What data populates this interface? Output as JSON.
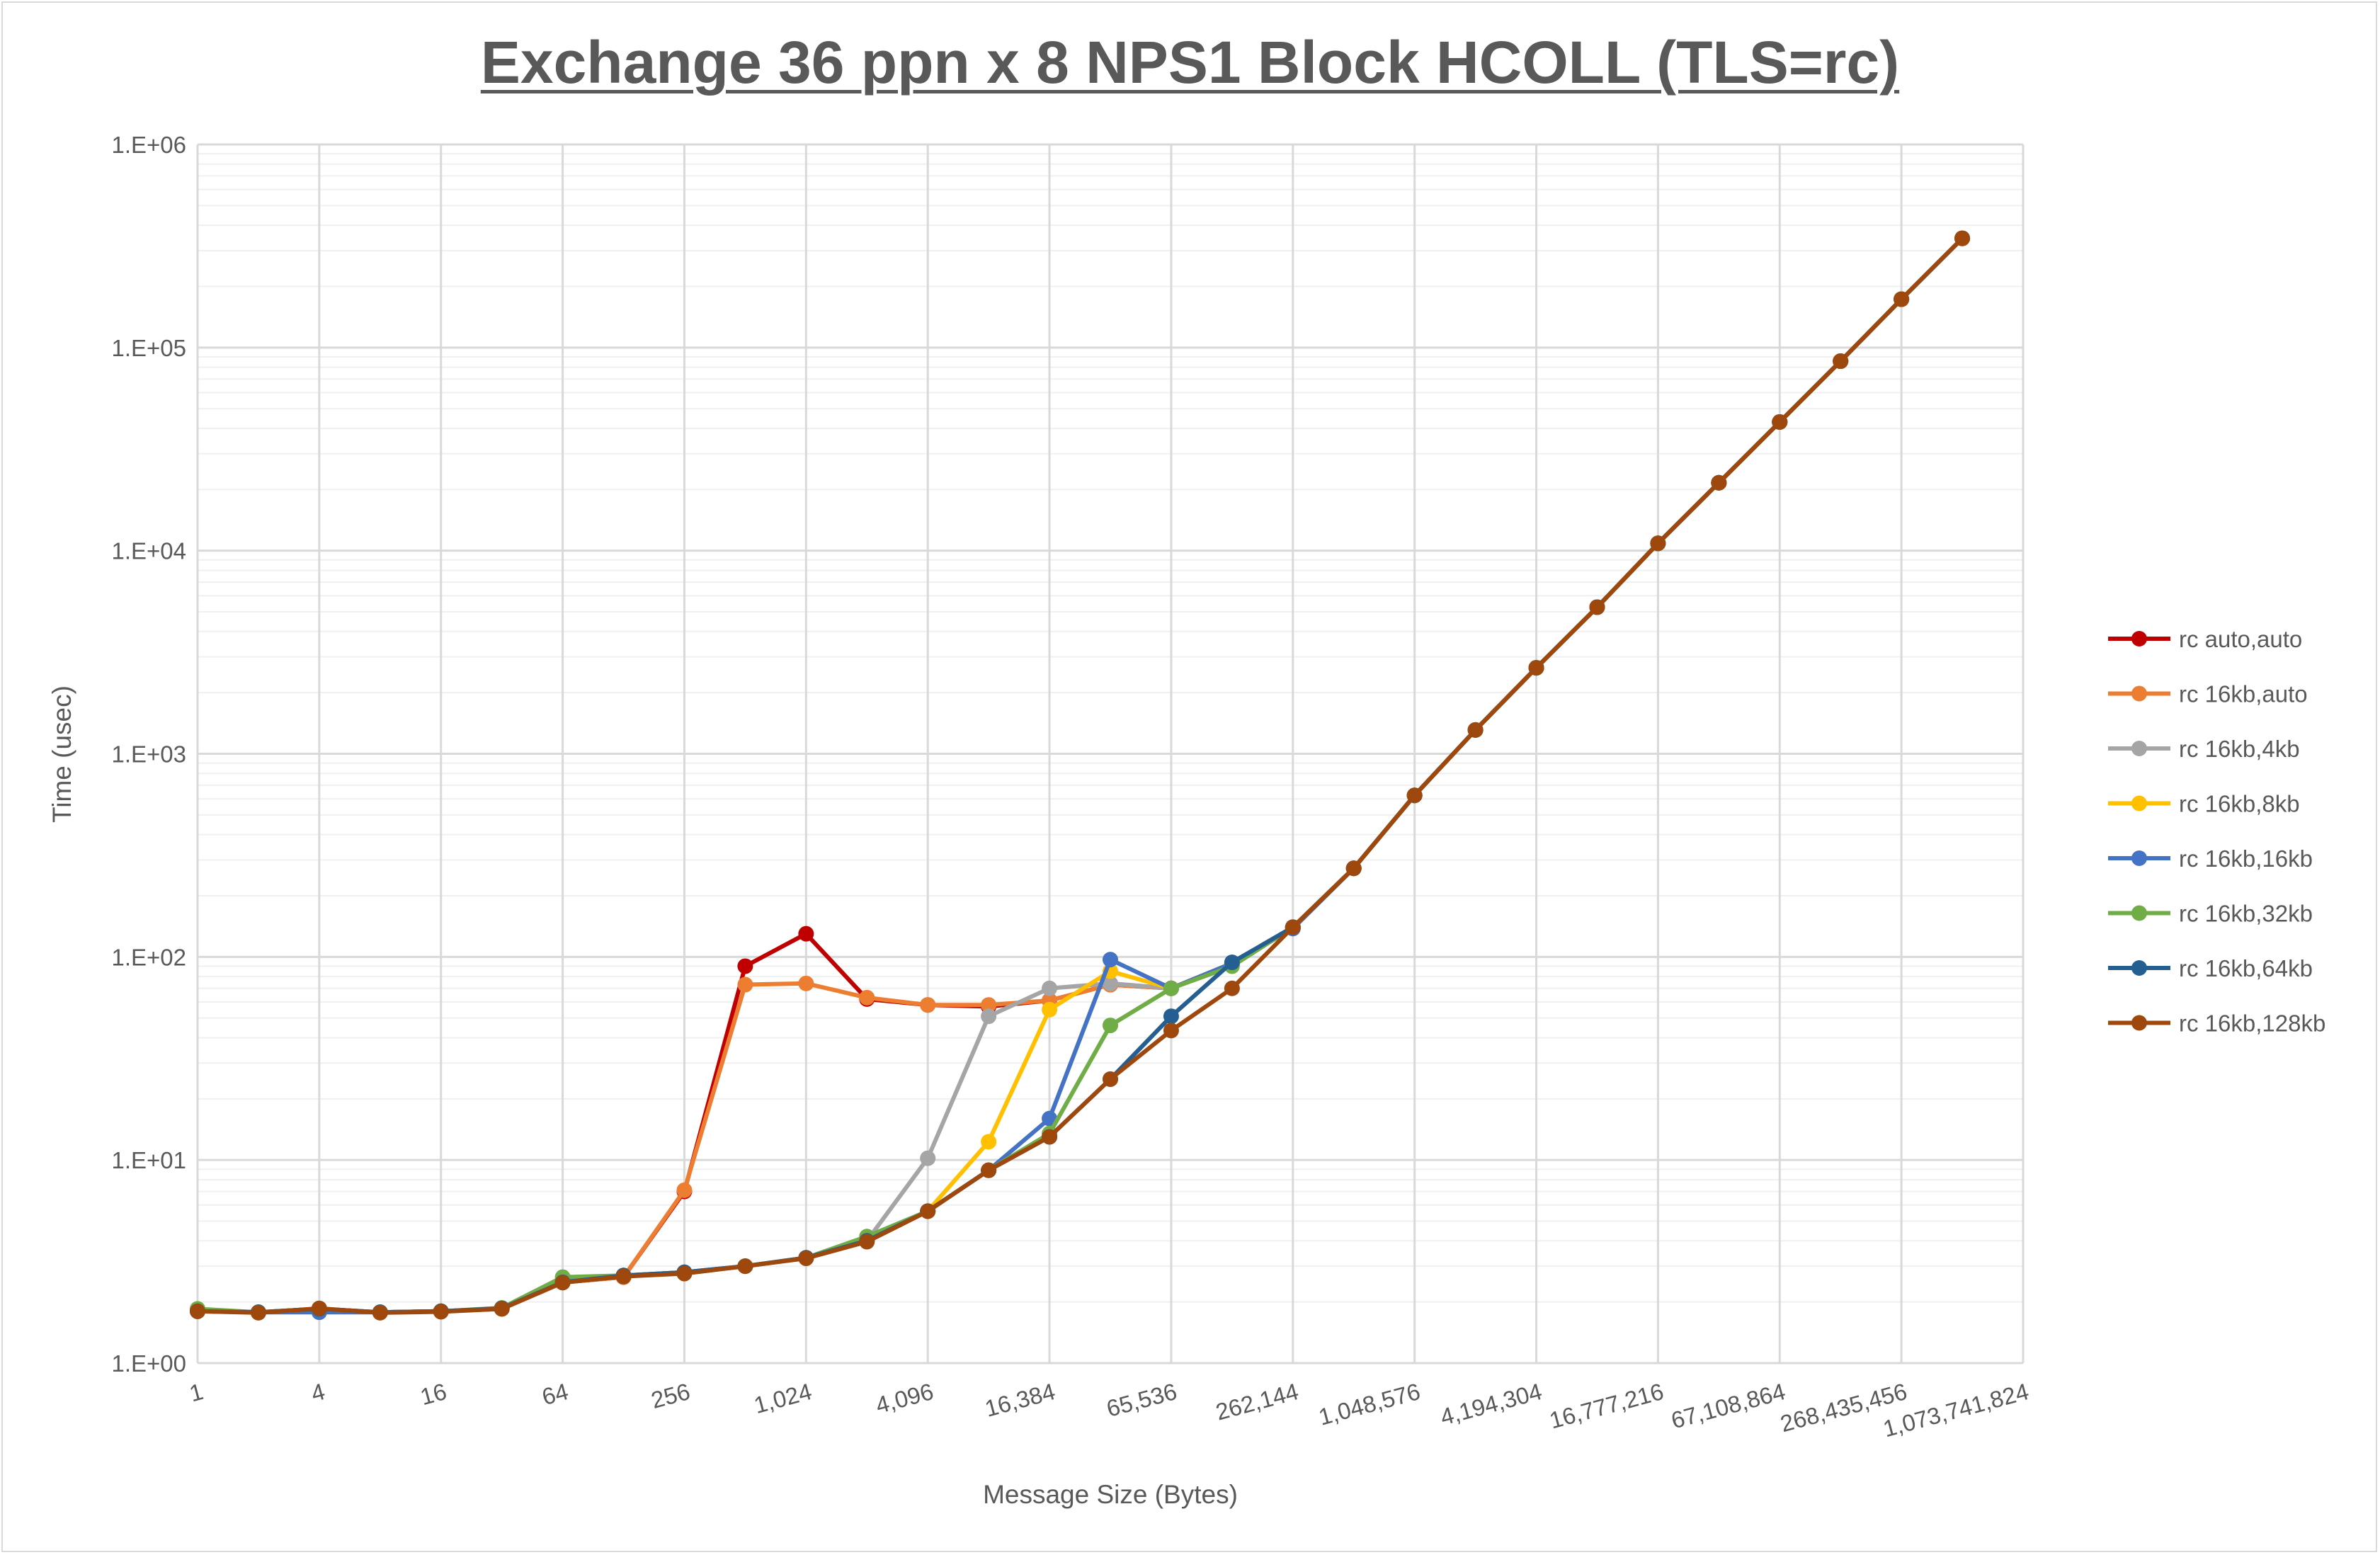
{
  "chart_data": {
    "type": "line",
    "title": "Exchange 36 ppn x 8 NPS1 Block HCOLL (TLS=rc)",
    "xlabel": "Message Size (Bytes)",
    "ylabel": "Time (usec)",
    "x_scale": "log2",
    "y_scale": "log10",
    "xlim": [
      1,
      1073741824
    ],
    "ylim": [
      1,
      1000000
    ],
    "grid": true,
    "legend": "right",
    "x_tick_labels": [
      "1",
      "4",
      "16",
      "64",
      "256",
      "1,024",
      "4,096",
      "16,384",
      "65,536",
      "262,144",
      "1,048,576",
      "4,194,304",
      "16,777,216",
      "67,108,864",
      "268,435,456",
      "1,073,741,824"
    ],
    "y_tick_labels": [
      "1.E+00",
      "1.E+01",
      "1.E+02",
      "1.E+03",
      "1.E+04",
      "1.E+05",
      "1.E+06"
    ],
    "x": [
      1,
      2,
      4,
      8,
      16,
      32,
      64,
      128,
      256,
      512,
      1024,
      2048,
      4096,
      8192,
      16384,
      32768,
      65536,
      131072,
      262144,
      524288,
      1048576,
      2097152,
      4194304,
      8388608,
      16777216,
      33554432,
      67108864,
      134217728,
      268435456,
      536870912
    ],
    "series": [
      {
        "name": "rc auto,auto",
        "color": "#c00000",
        "values": [
          1.82,
          1.78,
          1.85,
          1.78,
          1.8,
          1.85,
          2.5,
          2.65,
          7.0,
          90,
          130,
          62,
          58,
          57,
          61,
          73,
          70,
          93,
          140,
          273,
          624,
          1310,
          2650,
          5270,
          10870,
          21600,
          43000,
          85700,
          173000,
          345000
        ]
      },
      {
        "name": "rc 16kb,auto",
        "color": "#ed7d31",
        "values": [
          1.82,
          1.78,
          1.85,
          1.78,
          1.8,
          1.85,
          2.5,
          2.65,
          7.1,
          73,
          74,
          63,
          58,
          58,
          61,
          73,
          70,
          93,
          140,
          273,
          624,
          1310,
          2650,
          5270,
          10870,
          21600,
          43000,
          85700,
          173000,
          345000
        ]
      },
      {
        "name": "rc 16kb,4kb",
        "color": "#a5a5a5",
        "values": [
          1.8,
          1.78,
          1.84,
          1.78,
          1.8,
          1.86,
          2.5,
          2.7,
          2.8,
          3.0,
          3.3,
          4.0,
          10.2,
          51,
          70,
          74,
          70,
          92,
          138,
          273,
          624,
          1310,
          2650,
          5270,
          10870,
          21600,
          43000,
          85700,
          173000,
          345000
        ]
      },
      {
        "name": "rc 16kb,8kb",
        "color": "#ffc000",
        "values": [
          1.8,
          1.78,
          1.84,
          1.78,
          1.8,
          1.86,
          2.5,
          2.7,
          2.8,
          3.0,
          3.3,
          4.0,
          5.6,
          12.3,
          55,
          85,
          70,
          93,
          140,
          273,
          624,
          1310,
          2650,
          5270,
          10870,
          21600,
          43000,
          85700,
          173000,
          345000
        ]
      },
      {
        "name": "rc 16kb,16kb",
        "color": "#4472c4",
        "values": [
          1.8,
          1.78,
          1.78,
          1.78,
          1.8,
          1.86,
          2.55,
          2.7,
          2.8,
          3.0,
          3.3,
          4.0,
          5.6,
          8.9,
          16,
          97,
          70,
          93,
          138,
          273,
          624,
          1310,
          2650,
          5270,
          10870,
          21600,
          43000,
          85700,
          173000,
          345000
        ]
      },
      {
        "name": "rc 16kb,32kb",
        "color": "#70ad47",
        "values": [
          1.85,
          1.78,
          1.85,
          1.78,
          1.8,
          1.87,
          2.65,
          2.7,
          2.76,
          3.0,
          3.3,
          4.2,
          5.6,
          8.9,
          13.5,
          46,
          70,
          90,
          140,
          273,
          624,
          1310,
          2650,
          5270,
          10870,
          21600,
          43000,
          85700,
          173000,
          345000
        ]
      },
      {
        "name": "rc 16kb,64kb",
        "color": "#255e91",
        "values": [
          1.8,
          1.78,
          1.85,
          1.78,
          1.8,
          1.86,
          2.5,
          2.7,
          2.8,
          3.0,
          3.3,
          4.0,
          5.6,
          8.9,
          13.0,
          25,
          51,
          94,
          140,
          273,
          624,
          1310,
          2650,
          5270,
          10870,
          21600,
          43000,
          85700,
          173000,
          345000
        ]
      },
      {
        "name": "rc 16kb,128kb",
        "color": "#9e480e",
        "values": [
          1.8,
          1.77,
          1.86,
          1.77,
          1.79,
          1.85,
          2.49,
          2.67,
          2.76,
          3.0,
          3.28,
          3.96,
          5.59,
          8.9,
          13.0,
          25,
          43.4,
          70,
          140,
          273,
          624,
          1310,
          2650,
          5270,
          10870,
          21600,
          43000,
          85700,
          173000,
          345000
        ]
      }
    ]
  }
}
